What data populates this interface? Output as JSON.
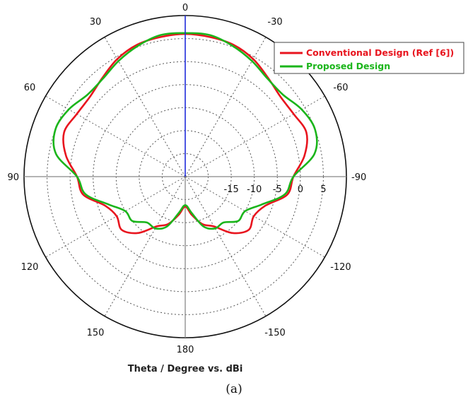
{
  "chart_data": {
    "type": "line",
    "subtype": "polar",
    "xlabel": "Theta / Degree vs. dBi",
    "caption": "(a)",
    "radial_ticks": [
      "-15",
      "-10",
      "-5",
      "0",
      "5"
    ],
    "rlim": [
      -25,
      10
    ],
    "angle_ticks": [
      {
        "angle": 0,
        "label": "0"
      },
      {
        "angle": 30,
        "label": "-30"
      },
      {
        "angle": 60,
        "label": "-60"
      },
      {
        "angle": 90,
        "label": "-90"
      },
      {
        "angle": 120,
        "label": "-120"
      },
      {
        "angle": 150,
        "label": "-150"
      },
      {
        "angle": 180,
        "label": "180"
      },
      {
        "angle": 210,
        "label": "150"
      },
      {
        "angle": 240,
        "label": "120"
      },
      {
        "angle": 270,
        "label": "90"
      },
      {
        "angle": 300,
        "label": "60"
      },
      {
        "angle": 330,
        "label": "30"
      }
    ],
    "grid": true,
    "legend_position": "top-right",
    "theta_deg": [
      0,
      10,
      20,
      30,
      40,
      50,
      60,
      70,
      80,
      90,
      100,
      110,
      120,
      130,
      140,
      150,
      160,
      170,
      180,
      190,
      200,
      210,
      220,
      230,
      240,
      250,
      260,
      270,
      280,
      290,
      300,
      310,
      320,
      330,
      340,
      350
    ],
    "series": [
      {
        "name": "Conventional Design (Ref [6])",
        "color": "#e8141e",
        "values": [
          6.0,
          5.8,
          5.5,
          4.5,
          3.0,
          2.0,
          2.2,
          3.0,
          1.3,
          -1.5,
          -2.5,
          -6.5,
          -7.8,
          -7.0,
          -9.0,
          -12.5,
          -14.0,
          -16.5,
          -18.5,
          -16.5,
          -14.0,
          -12.5,
          -9.0,
          -7.0,
          -7.8,
          -6.5,
          -2.5,
          -1.5,
          1.3,
          3.0,
          2.2,
          2.0,
          3.0,
          4.5,
          5.5,
          5.8
        ]
      },
      {
        "name": "Proposed Design",
        "color": "#1bb51b",
        "values": [
          6.2,
          6.2,
          5.2,
          4.0,
          2.8,
          2.7,
          4.2,
          5.0,
          3.5,
          -1.5,
          -3.0,
          -7.3,
          -10.0,
          -10.0,
          -12.0,
          -12.0,
          -13.5,
          -17.0,
          -18.8,
          -17.0,
          -13.5,
          -12.0,
          -12.0,
          -10.0,
          -10.0,
          -7.3,
          -3.0,
          -1.5,
          3.5,
          5.0,
          4.2,
          2.7,
          2.8,
          4.0,
          5.2,
          6.2
        ]
      }
    ]
  }
}
